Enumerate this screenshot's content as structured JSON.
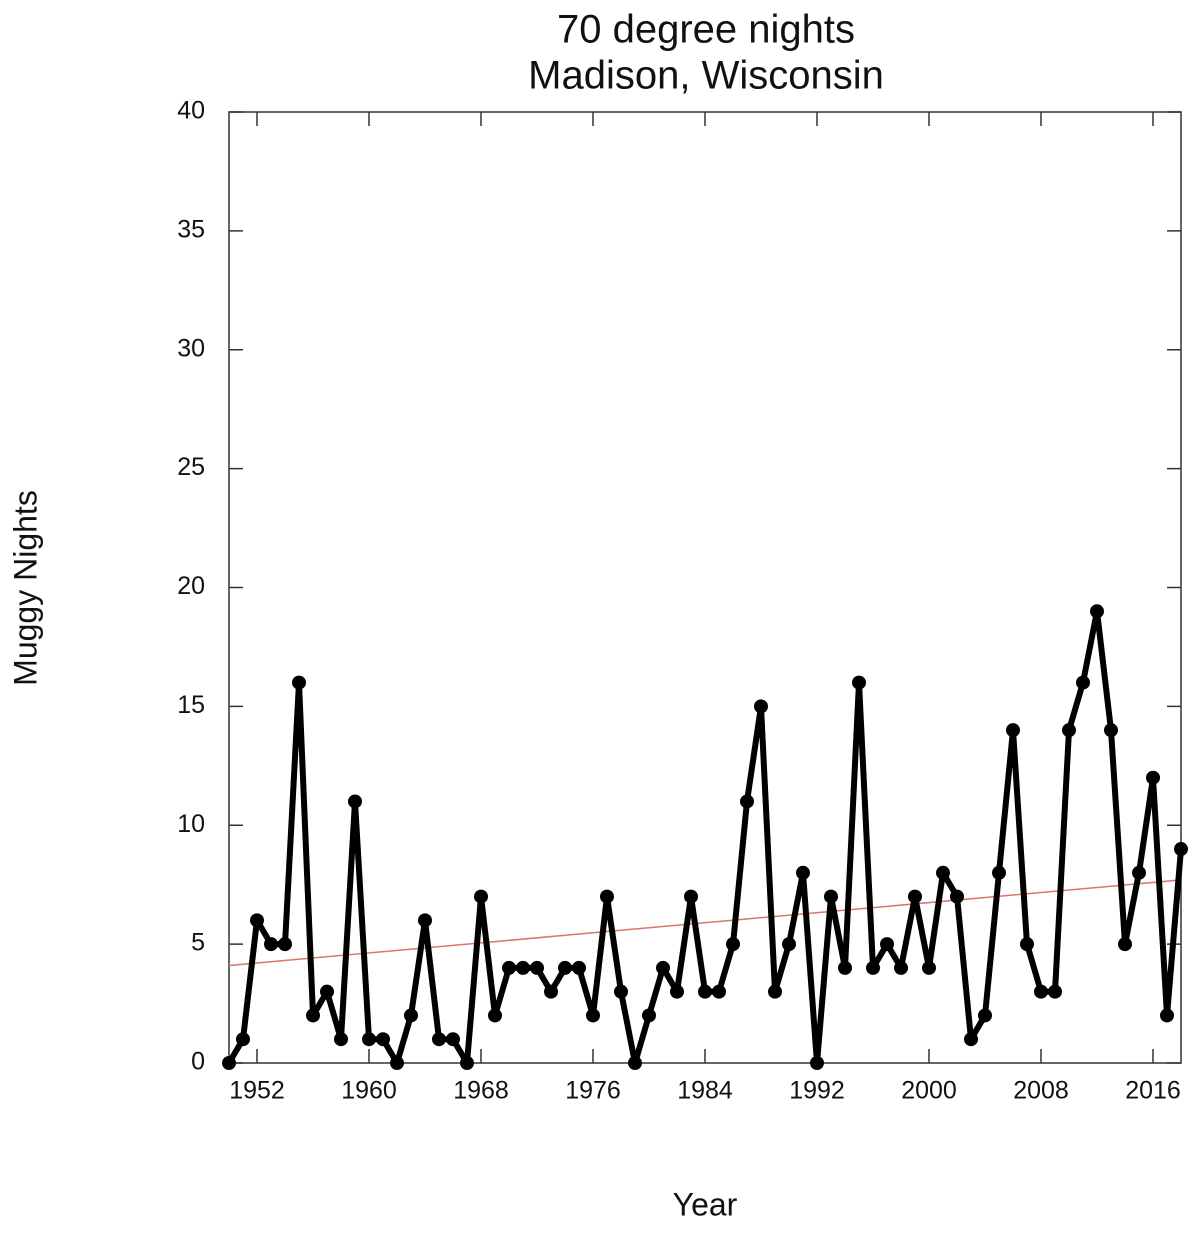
{
  "chart_data": {
    "type": "line",
    "title": "70 degree nights",
    "subtitle": "Madison, Wisconsin",
    "x_label": "Year",
    "y_label": "Muggy Nights",
    "x": [
      1950,
      1951,
      1952,
      1953,
      1954,
      1955,
      1956,
      1957,
      1958,
      1959,
      1960,
      1961,
      1962,
      1963,
      1964,
      1965,
      1966,
      1967,
      1968,
      1969,
      1970,
      1971,
      1972,
      1973,
      1974,
      1975,
      1976,
      1977,
      1978,
      1979,
      1980,
      1981,
      1982,
      1983,
      1984,
      1985,
      1986,
      1987,
      1988,
      1989,
      1990,
      1991,
      1992,
      1993,
      1994,
      1995,
      1996,
      1997,
      1998,
      1999,
      2000,
      2001,
      2002,
      2003,
      2004,
      2005,
      2006,
      2007,
      2008,
      2009,
      2010,
      2011,
      2012,
      2013,
      2014,
      2015,
      2016,
      2017,
      2018
    ],
    "series": [
      {
        "color": "#000000",
        "values": [
          0,
          1,
          6,
          5,
          5,
          16,
          2,
          3,
          1,
          11,
          1,
          1,
          0,
          2,
          6,
          1,
          1,
          0,
          7,
          2,
          4,
          4,
          4,
          3,
          4,
          4,
          2,
          7,
          3,
          0,
          2,
          4,
          3,
          7,
          3,
          3,
          5,
          11,
          15,
          3,
          5,
          8,
          0,
          7,
          4,
          16,
          4,
          5,
          4,
          7,
          4,
          8,
          7,
          1,
          2,
          8,
          14,
          5,
          3,
          3,
          14,
          16,
          19,
          14,
          5,
          8,
          12,
          2,
          9
        ]
      }
    ],
    "trend": {
      "color": "#d9776a",
      "x": [
        1950,
        2018
      ],
      "values": [
        4.1,
        7.7
      ]
    },
    "xlim": [
      1950,
      2018
    ],
    "xticks": [
      1952,
      1960,
      1968,
      1976,
      1984,
      1992,
      2000,
      2008,
      2016
    ],
    "ylim": [
      0,
      40
    ],
    "yticks": [
      0,
      5,
      10,
      15,
      20,
      25,
      30,
      35,
      40
    ]
  }
}
